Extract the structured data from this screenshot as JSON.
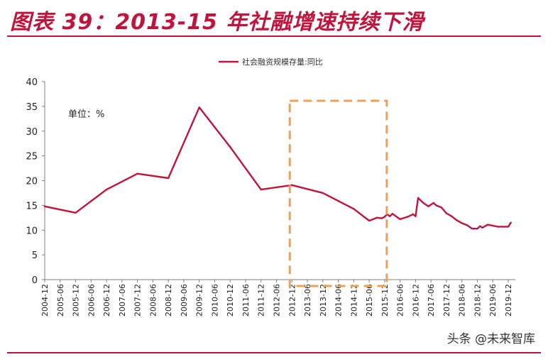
{
  "title": "图表 39：2013-15 年社融增速持续下滑",
  "unit_note": "单位：%",
  "watermark": "头条 @未来智库",
  "colors": {
    "accent": "#c0143c",
    "series": "#c0143c",
    "highlight": "#f0a050",
    "axis": "#7f7f7f"
  },
  "chart_data": {
    "type": "line",
    "legend_position": "top-center",
    "grid": false,
    "ylim": [
      0,
      40
    ],
    "yticks": [
      0,
      5,
      10,
      15,
      20,
      25,
      30,
      35,
      40
    ],
    "x_tick_labels": [
      "2004-12",
      "2005-06",
      "2005-12",
      "2006-06",
      "2006-12",
      "2007-06",
      "2007-12",
      "2008-06",
      "2008-12",
      "2009-06",
      "2009-12",
      "2010-06",
      "2010-12",
      "2011-06",
      "2011-12",
      "2012-06",
      "2012-12",
      "2013-06",
      "2013-12",
      "2014-06",
      "2014-12",
      "2015-06",
      "2015-12",
      "2016-06",
      "2016-12",
      "2017-06",
      "2017-12",
      "2018-06",
      "2018-12",
      "2019-06",
      "2019-12"
    ],
    "highlight_range": [
      "2012-12",
      "2015-12"
    ],
    "series": [
      {
        "name": "社会融资规模存量:同比",
        "x": [
          "2004-12",
          "2005-12",
          "2006-12",
          "2007-12",
          "2008-12",
          "2009-12",
          "2010-12",
          "2011-12",
          "2012-12",
          "2013-12",
          "2014-12",
          "2015-06",
          "2015-09",
          "2015-11",
          "2015-12",
          "2016-01",
          "2016-02",
          "2016-03",
          "2016-06",
          "2016-09",
          "2016-11",
          "2016-12",
          "2017-01",
          "2017-03",
          "2017-05",
          "2017-07",
          "2017-08",
          "2017-10",
          "2017-12",
          "2018-02",
          "2018-04",
          "2018-06",
          "2018-08",
          "2018-10",
          "2018-12",
          "2019-01",
          "2019-02",
          "2019-04",
          "2019-06",
          "2019-08",
          "2019-10",
          "2019-12",
          "2020-01"
        ],
        "values": [
          14.8,
          13.5,
          18.2,
          21.4,
          20.5,
          34.8,
          26.8,
          18.2,
          19.1,
          17.5,
          14.3,
          11.9,
          12.5,
          12.4,
          12.7,
          13.2,
          12.8,
          13.3,
          12.2,
          12.7,
          13.2,
          12.8,
          16.5,
          15.5,
          14.8,
          15.5,
          15.0,
          14.6,
          13.4,
          12.8,
          12.0,
          11.4,
          11.0,
          10.3,
          10.3,
          10.8,
          10.5,
          11.1,
          10.9,
          10.7,
          10.7,
          10.7,
          11.5
        ]
      }
    ]
  }
}
